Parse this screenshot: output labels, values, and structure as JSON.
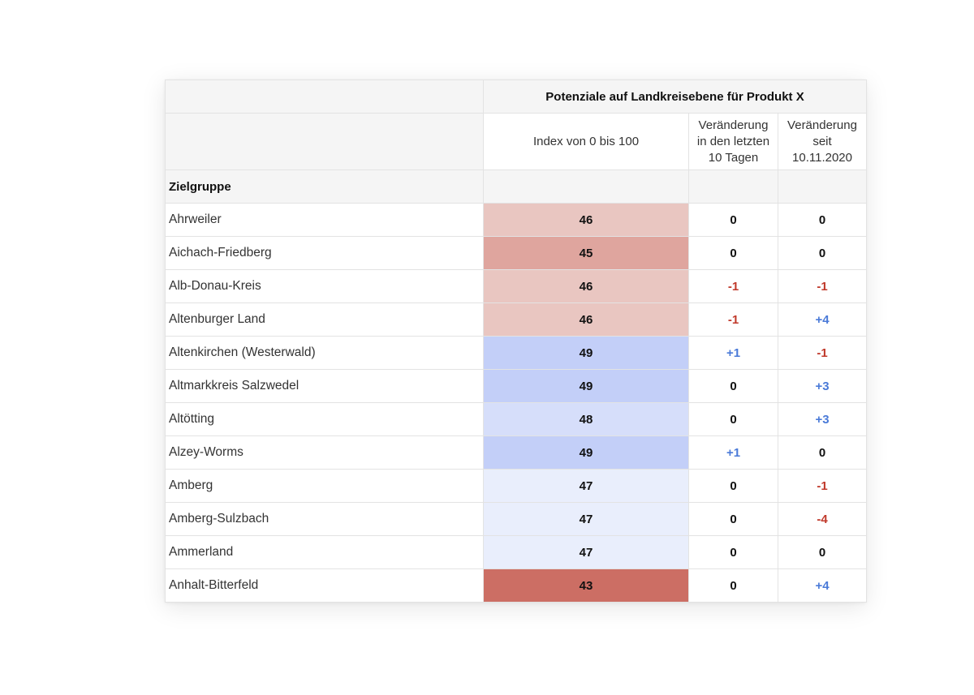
{
  "table": {
    "title": "Potenziale auf Landkreisebene für Produkt X",
    "columns": {
      "index": "Index von 0 bis 100",
      "change_10d": "Veränderung\nin den letzten\n10 Tagen",
      "change_since": "Veränderung\nseit\n10.11.2020"
    },
    "group_label": "Zielgruppe",
    "rows": [
      {
        "name": "Ahrweiler",
        "index": "46",
        "change_10d": "0",
        "change_since": "0",
        "index_color": "#e9c6c1"
      },
      {
        "name": "Aichach-Friedberg",
        "index": "45",
        "change_10d": "0",
        "change_since": "0",
        "index_color": "#dfa59e"
      },
      {
        "name": "Alb-Donau-Kreis",
        "index": "46",
        "change_10d": "-1",
        "change_since": "-1",
        "index_color": "#e9c6c1"
      },
      {
        "name": "Altenburger Land",
        "index": "46",
        "change_10d": "-1",
        "change_since": "+4",
        "index_color": "#e9c6c1"
      },
      {
        "name": "Altenkirchen (Westerwald)",
        "index": "49",
        "change_10d": "+1",
        "change_since": "-1",
        "index_color": "#c3cff8"
      },
      {
        "name": "Altmarkkreis Salzwedel",
        "index": "49",
        "change_10d": "0",
        "change_since": "+3",
        "index_color": "#c3cff8"
      },
      {
        "name": "Altötting",
        "index": "48",
        "change_10d": "0",
        "change_since": "+3",
        "index_color": "#d6defa"
      },
      {
        "name": "Alzey-Worms",
        "index": "49",
        "change_10d": "+1",
        "change_since": "0",
        "index_color": "#c3cff8"
      },
      {
        "name": "Amberg",
        "index": "47",
        "change_10d": "0",
        "change_since": "-1",
        "index_color": "#e9eefc"
      },
      {
        "name": "Amberg-Sulzbach",
        "index": "47",
        "change_10d": "0",
        "change_since": "-4",
        "index_color": "#e9eefc"
      },
      {
        "name": "Ammerland",
        "index": "47",
        "change_10d": "0",
        "change_since": "0",
        "index_color": "#e9eefc"
      },
      {
        "name": "Anhalt-Bitterfeld",
        "index": "43",
        "change_10d": "0",
        "change_since": "+4",
        "index_color": "#cc6e64"
      }
    ]
  }
}
